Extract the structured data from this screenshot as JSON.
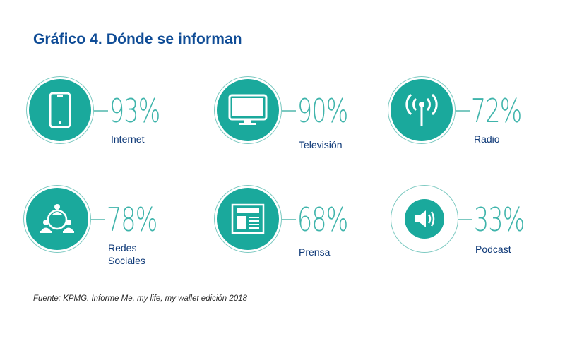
{
  "title": "Gráfico 4. Dónde se informan",
  "source": "Fuente: KPMG. Informe Me, my life, my wallet edición 2018",
  "colors": {
    "title": "#0f4c96",
    "teal": "#1aa99c",
    "teal_light": "#7cc9c1",
    "label": "#0f3a78"
  },
  "chart_data": {
    "type": "infographic",
    "title": "Gráfico 4. Dónde se informan",
    "categories": [
      "Internet",
      "Televisión",
      "Radio",
      "Redes Sociales",
      "Prensa",
      "Podcast"
    ],
    "values": [
      93,
      90,
      72,
      78,
      68,
      33
    ],
    "unit": "%",
    "items": [
      {
        "label": "Internet",
        "value": 93,
        "value_label": "93%",
        "icon": "smartphone-icon"
      },
      {
        "label": "Televisión",
        "value": 90,
        "value_label": "90%",
        "icon": "television-icon"
      },
      {
        "label": "Radio",
        "value": 72,
        "value_label": "72%",
        "icon": "radio-antenna-icon"
      },
      {
        "label": "Redes\nSociales",
        "value": 78,
        "value_label": "78%",
        "icon": "social-network-icon"
      },
      {
        "label": "Prensa",
        "value": 68,
        "value_label": "68%",
        "icon": "newspaper-icon"
      },
      {
        "label": "Podcast",
        "value": 33,
        "value_label": "33%",
        "icon": "speaker-icon"
      }
    ]
  }
}
